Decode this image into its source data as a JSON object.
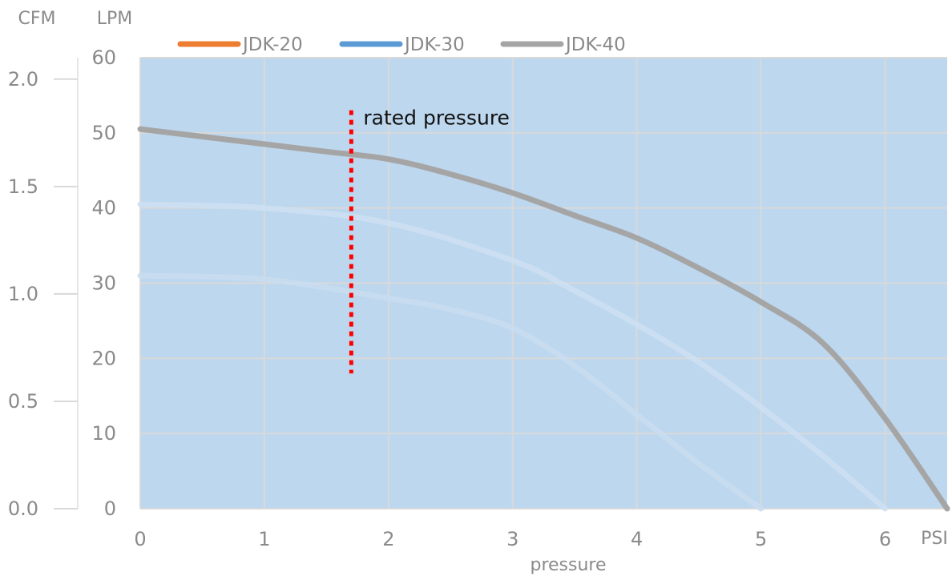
{
  "chart_data": {
    "type": "line",
    "xlabel": "pressure",
    "x_unit": "PSI",
    "ylabel_left": "CFM",
    "ylabel_right": "LPM",
    "xlim": [
      0,
      6.5
    ],
    "ylim": [
      0,
      60
    ],
    "cfm_lim": [
      0,
      2.1
    ],
    "x_ticks": [
      "0",
      "1",
      "2",
      "3",
      "4",
      "5",
      "6"
    ],
    "lpm_ticks": [
      "0",
      "10",
      "20",
      "30",
      "40",
      "50",
      "60"
    ],
    "cfm_ticks": [
      "0.0",
      "0.5",
      "1.0",
      "1.5",
      "2.0"
    ],
    "grid": true,
    "plot_background": "#bdd7ee",
    "grid_color": "#d9d9d9",
    "legend_position": "top",
    "series": [
      {
        "name": "JDK-20",
        "color": "#ed7d31",
        "points": [
          [
            0,
            31
          ],
          [
            1,
            30.5
          ],
          [
            2,
            28
          ],
          [
            2.5,
            26.5
          ],
          [
            3,
            24
          ],
          [
            3.5,
            19
          ],
          [
            4,
            12.5
          ],
          [
            4.5,
            6
          ],
          [
            5,
            0
          ]
        ]
      },
      {
        "name": "JDK-30",
        "color": "#5b9bd5",
        "points": [
          [
            0,
            40.5
          ],
          [
            1,
            40
          ],
          [
            2,
            38
          ],
          [
            3,
            33
          ],
          [
            3.5,
            29
          ],
          [
            4,
            24.5
          ],
          [
            4.5,
            19.5
          ],
          [
            5,
            13.5
          ],
          [
            5.5,
            7
          ],
          [
            6,
            0
          ]
        ]
      },
      {
        "name": "JDK-40",
        "color": "#a5a5a5",
        "points": [
          [
            0,
            50.5
          ],
          [
            0.5,
            49.5
          ],
          [
            1,
            48.5
          ],
          [
            1.5,
            47.5
          ],
          [
            2,
            46.5
          ],
          [
            2.5,
            44.5
          ],
          [
            3,
            42
          ],
          [
            3.5,
            39
          ],
          [
            4,
            36
          ],
          [
            4.5,
            32
          ],
          [
            5,
            27.5
          ],
          [
            5.5,
            22
          ],
          [
            6,
            12
          ],
          [
            6.5,
            0
          ]
        ]
      }
    ],
    "annotations": [
      {
        "text": "rated pressure",
        "x": 1.7,
        "y_from": 18,
        "y_to": 53,
        "color": "#ff0000",
        "style": "dotted"
      }
    ]
  }
}
